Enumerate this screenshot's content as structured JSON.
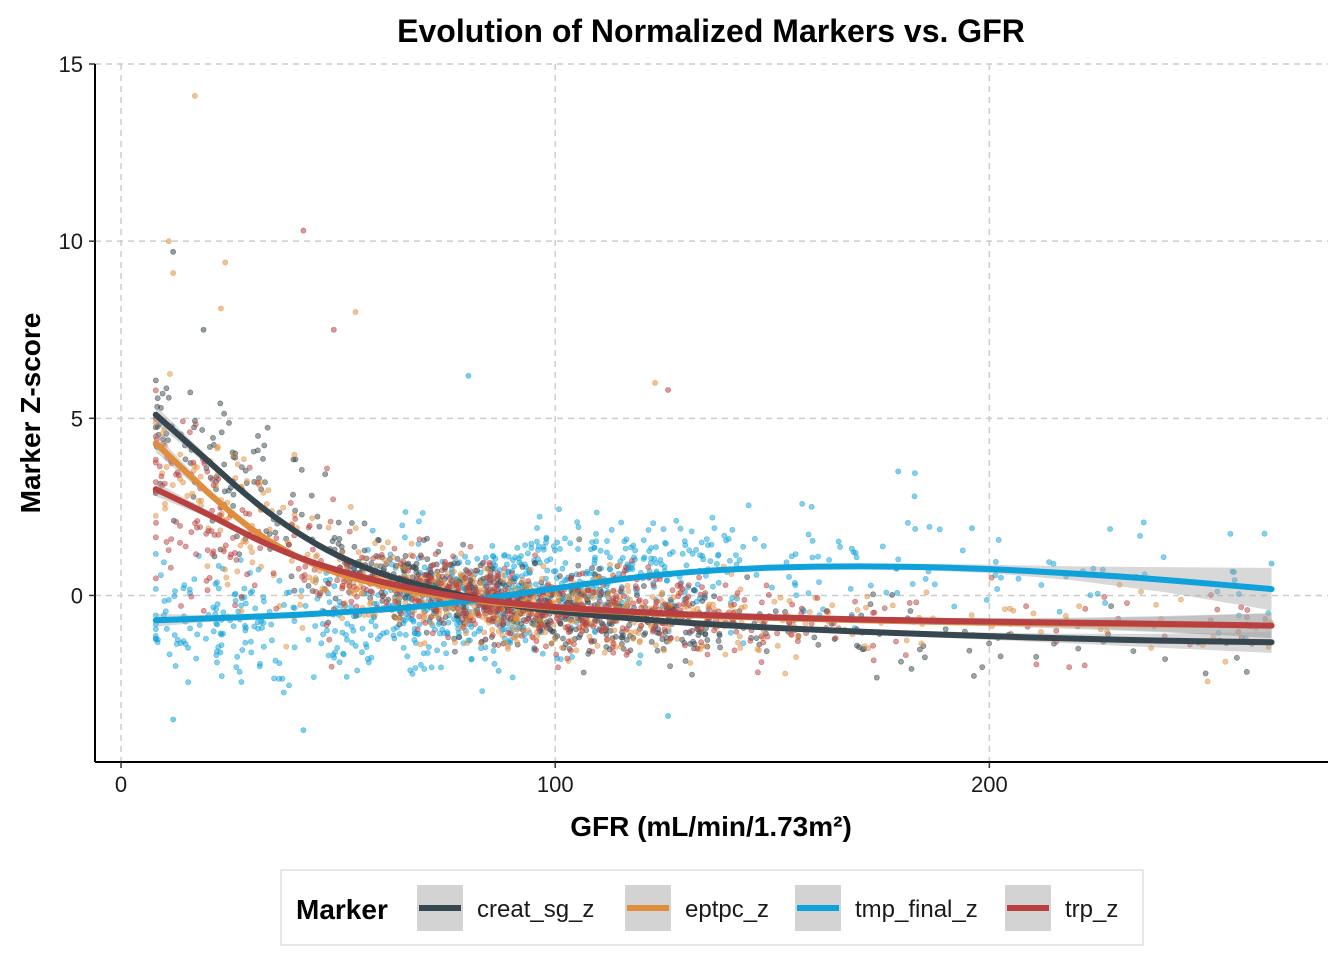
{
  "chart_data": {
    "type": "scatter",
    "title": "Evolution of Normalized Markers vs. GFR",
    "xlabel": "GFR (mL/min/1.73m²)",
    "ylabel": "Marker Z-score",
    "xlim": [
      -6,
      278
    ],
    "ylim": [
      -4.7,
      15
    ],
    "xticks": [
      0,
      100,
      200
    ],
    "yticks": [
      0,
      5,
      10,
      15
    ],
    "x_tick_labels": [
      "0",
      "100",
      "200"
    ],
    "y_tick_labels": [
      "0",
      "5",
      "10",
      "15"
    ],
    "grid": true,
    "legend": {
      "title": "Marker",
      "position": "bottom"
    },
    "series": [
      {
        "name": "creat_sg_z",
        "color": "#37474f",
        "smooth": {
          "x": [
            8,
            20,
            30,
            40,
            50,
            60,
            70,
            80,
            90,
            100,
            120,
            140,
            160,
            180,
            200,
            220,
            240,
            265
          ],
          "y": [
            5.1,
            3.8,
            2.7,
            1.8,
            1.1,
            0.6,
            0.25,
            -0.05,
            -0.28,
            -0.45,
            -0.68,
            -0.85,
            -0.97,
            -1.07,
            -1.15,
            -1.22,
            -1.28,
            -1.32
          ]
        },
        "ci_halfwidth": [
          0.25,
          0.12,
          0.07,
          0.05,
          0.04,
          0.04,
          0.04,
          0.04,
          0.04,
          0.04,
          0.04,
          0.05,
          0.06,
          0.08,
          0.1,
          0.14,
          0.2,
          0.3
        ]
      },
      {
        "name": "eptpc_z",
        "color": "#e08e3e",
        "smooth": {
          "x": [
            8,
            20,
            30,
            40,
            50,
            60,
            70,
            80,
            90,
            100,
            120,
            140,
            160,
            180,
            200,
            220,
            240,
            265
          ],
          "y": [
            4.3,
            2.9,
            1.85,
            1.1,
            0.6,
            0.28,
            0.05,
            -0.12,
            -0.25,
            -0.35,
            -0.5,
            -0.6,
            -0.67,
            -0.73,
            -0.77,
            -0.8,
            -0.82,
            -0.85
          ]
        },
        "ci_halfwidth": [
          0.25,
          0.12,
          0.07,
          0.05,
          0.04,
          0.04,
          0.04,
          0.04,
          0.04,
          0.04,
          0.04,
          0.05,
          0.06,
          0.08,
          0.1,
          0.15,
          0.22,
          0.35
        ]
      },
      {
        "name": "tmp_final_z",
        "color": "#0fa1d9",
        "smooth": {
          "x": [
            8,
            20,
            30,
            40,
            50,
            60,
            70,
            80,
            90,
            100,
            120,
            140,
            160,
            180,
            200,
            220,
            240,
            265
          ],
          "y": [
            -0.7,
            -0.65,
            -0.6,
            -0.55,
            -0.48,
            -0.4,
            -0.3,
            -0.15,
            0.02,
            0.2,
            0.55,
            0.75,
            0.82,
            0.82,
            0.75,
            0.62,
            0.45,
            0.18
          ]
        },
        "ci_halfwidth": [
          0.18,
          0.1,
          0.07,
          0.05,
          0.04,
          0.04,
          0.04,
          0.04,
          0.04,
          0.04,
          0.04,
          0.05,
          0.06,
          0.08,
          0.12,
          0.2,
          0.35,
          0.6
        ]
      },
      {
        "name": "trp_z",
        "color": "#b94040",
        "smooth": {
          "x": [
            8,
            20,
            30,
            40,
            50,
            60,
            70,
            80,
            90,
            100,
            120,
            140,
            160,
            180,
            200,
            220,
            240,
            265
          ],
          "y": [
            3.0,
            2.3,
            1.65,
            1.1,
            0.7,
            0.38,
            0.12,
            -0.08,
            -0.22,
            -0.33,
            -0.48,
            -0.58,
            -0.65,
            -0.7,
            -0.74,
            -0.77,
            -0.8,
            -0.85
          ]
        },
        "ci_halfwidth": [
          0.2,
          0.1,
          0.06,
          0.05,
          0.04,
          0.04,
          0.04,
          0.04,
          0.04,
          0.04,
          0.04,
          0.05,
          0.06,
          0.08,
          0.1,
          0.14,
          0.22,
          0.35
        ]
      }
    ],
    "outliers": [
      {
        "series": "eptpc_z",
        "x": 17,
        "y": 14.1
      },
      {
        "series": "eptpc_z",
        "x": 11,
        "y": 10.0
      },
      {
        "series": "creat_sg_z",
        "x": 12,
        "y": 9.7
      },
      {
        "series": "eptpc_z",
        "x": 12,
        "y": 9.1
      },
      {
        "series": "trp_z",
        "x": 42,
        "y": 10.3
      },
      {
        "series": "eptpc_z",
        "x": 24,
        "y": 9.4
      },
      {
        "series": "eptpc_z",
        "x": 23,
        "y": 8.1
      },
      {
        "series": "eptpc_z",
        "x": 54,
        "y": 8.0
      },
      {
        "series": "trp_z",
        "x": 49,
        "y": 7.5
      },
      {
        "series": "creat_sg_z",
        "x": 19,
        "y": 7.5
      },
      {
        "series": "tmp_final_z",
        "x": 80,
        "y": 6.2
      },
      {
        "series": "eptpc_z",
        "x": 123,
        "y": 6.0
      },
      {
        "series": "trp_z",
        "x": 126,
        "y": 5.8
      },
      {
        "series": "tmp_final_z",
        "x": 12,
        "y": -3.5
      },
      {
        "series": "tmp_final_z",
        "x": 42,
        "y": -3.8
      },
      {
        "series": "tmp_final_z",
        "x": 126,
        "y": -3.4
      },
      {
        "series": "tmp_final_z",
        "x": 179,
        "y": 3.5
      },
      {
        "series": "tmp_final_z",
        "x": 196,
        "y": 1.9
      },
      {
        "series": "tmp_final_z",
        "x": 265,
        "y": 0.9
      }
    ]
  }
}
